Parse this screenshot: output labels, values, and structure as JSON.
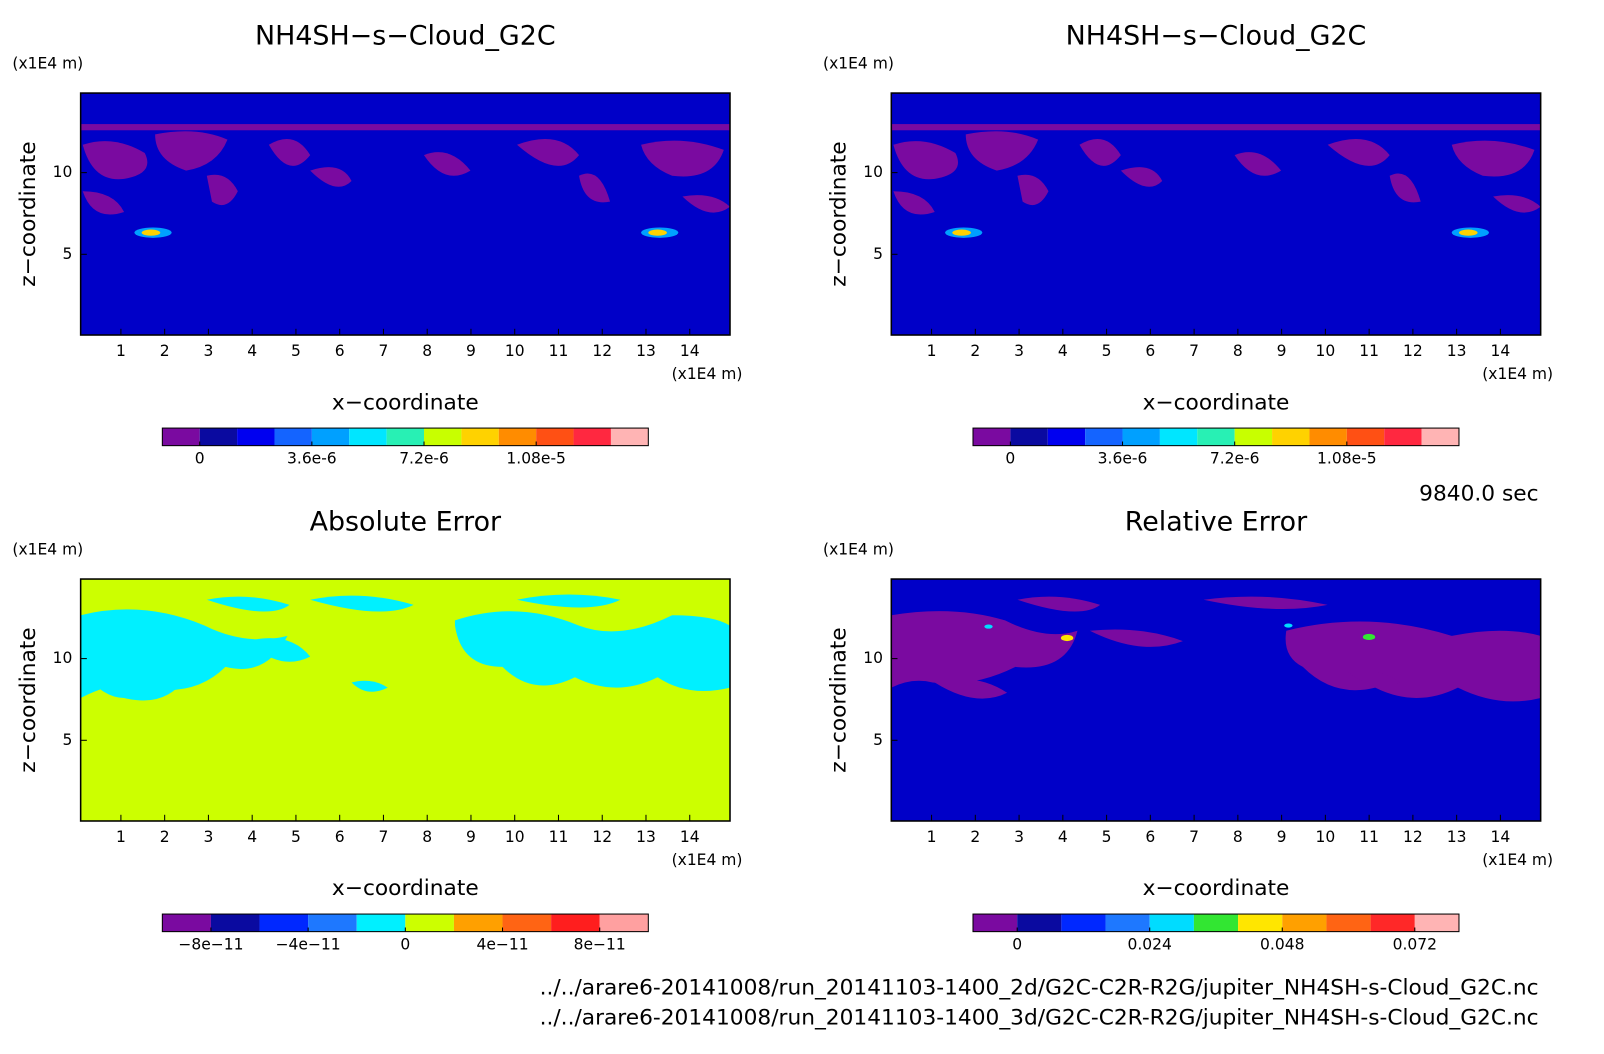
{
  "chart_data": [
    {
      "type": "contour",
      "title": "NH4SH−s−Cloud_G2C",
      "xlabel": "x−coordinate",
      "ylabel": "z−coordinate",
      "x_unit": "(x1E4 m)",
      "y_unit": "(x1E4 m)",
      "xlim": [
        0.08,
        14.92
      ],
      "ylim": [
        0.06,
        14.87
      ],
      "xticks": [
        1,
        2,
        3,
        4,
        5,
        6,
        7,
        8,
        9,
        10,
        11,
        12,
        13,
        14
      ],
      "yticks": [
        5,
        10
      ],
      "colorbar": {
        "colors": [
          "#7a0aa0",
          "#0a0aa0",
          "#0000f0",
          "#1464ff",
          "#00a0ff",
          "#00e6ff",
          "#28f0b4",
          "#c8ff00",
          "#ffd200",
          "#ff8c00",
          "#ff5014",
          "#ff2840",
          "#ffb4b4"
        ],
        "clim": [
          -1.2e-06,
          1.44e-05
        ],
        "ticks": [
          {
            "value": 0,
            "label": "0"
          },
          {
            "value": 3.6e-06,
            "label": "3.6e-6"
          },
          {
            "value": 7.2e-06,
            "label": "7.2e-6"
          },
          {
            "value": 1.08e-05,
            "label": "1.08e-5"
          }
        ]
      }
    },
    {
      "type": "contour",
      "title": "NH4SH−s−Cloud_G2C",
      "xlabel": "x−coordinate",
      "ylabel": "z−coordinate",
      "x_unit": "(x1E4 m)",
      "y_unit": "(x1E4 m)",
      "xlim": [
        0.08,
        14.92
      ],
      "ylim": [
        0.06,
        14.87
      ],
      "xticks": [
        1,
        2,
        3,
        4,
        5,
        6,
        7,
        8,
        9,
        10,
        11,
        12,
        13,
        14
      ],
      "yticks": [
        5,
        10
      ],
      "colorbar": {
        "colors": [
          "#7a0aa0",
          "#0a0aa0",
          "#0000f0",
          "#1464ff",
          "#00a0ff",
          "#00e6ff",
          "#28f0b4",
          "#c8ff00",
          "#ffd200",
          "#ff8c00",
          "#ff5014",
          "#ff2840",
          "#ffb4b4"
        ],
        "clim": [
          -1.2e-06,
          1.44e-05
        ],
        "ticks": [
          {
            "value": 0,
            "label": "0"
          },
          {
            "value": 3.6e-06,
            "label": "3.6e-6"
          },
          {
            "value": 7.2e-06,
            "label": "7.2e-6"
          },
          {
            "value": 1.08e-05,
            "label": "1.08e-5"
          }
        ]
      }
    },
    {
      "type": "contour",
      "title": "Absolute Error",
      "xlabel": "x−coordinate",
      "ylabel": "z−coordinate",
      "x_unit": "(x1E4 m)",
      "y_unit": "(x1E4 m)",
      "xlim": [
        0.08,
        14.92
      ],
      "ylim": [
        0.06,
        14.87
      ],
      "xticks": [
        1,
        2,
        3,
        4,
        5,
        6,
        7,
        8,
        9,
        10,
        11,
        12,
        13,
        14
      ],
      "yticks": [
        5,
        10
      ],
      "colorbar": {
        "colors": [
          "#7a0aa0",
          "#0a0aa0",
          "#0028ff",
          "#1e78ff",
          "#00f0ff",
          "#ccff00",
          "#ffa000",
          "#ff6414",
          "#ff1e1e",
          "#ffa0a0"
        ],
        "clim": [
          -1e-10,
          1e-10
        ],
        "ticks": [
          {
            "value": -8e-11,
            "label": "−8e−11"
          },
          {
            "value": -4e-11,
            "label": "−4e−11"
          },
          {
            "value": 0,
            "label": "0"
          },
          {
            "value": 4e-11,
            "label": "4e−11"
          },
          {
            "value": 8e-11,
            "label": "8e−11"
          }
        ]
      }
    },
    {
      "type": "contour",
      "title": "Relative Error",
      "xlabel": "x−coordinate",
      "ylabel": "z−coordinate",
      "x_unit": "(x1E4 m)",
      "y_unit": "(x1E4 m)",
      "xlim": [
        0.08,
        14.92
      ],
      "ylim": [
        0.06,
        14.87
      ],
      "xticks": [
        1,
        2,
        3,
        4,
        5,
        6,
        7,
        8,
        9,
        10,
        11,
        12,
        13,
        14
      ],
      "yticks": [
        5,
        10
      ],
      "colorbar": {
        "colors": [
          "#7a0aa0",
          "#0a0aa0",
          "#0028ff",
          "#1e78ff",
          "#00dcff",
          "#32e632",
          "#ffe600",
          "#ffa000",
          "#ff6414",
          "#ff2828",
          "#ffb4b4"
        ],
        "clim": [
          -0.008,
          0.08
        ],
        "ticks": [
          {
            "value": 0,
            "label": "0"
          },
          {
            "value": 0.024,
            "label": "0.024"
          },
          {
            "value": 0.048,
            "label": "0.048"
          },
          {
            "value": 0.072,
            "label": "0.072"
          }
        ]
      }
    }
  ],
  "time": "9840.0 sec",
  "files": [
    "../../arare6-20141008/run_20141103-1400_2d/G2C-C2R-R2G/jupiter_NH4SH-s-Cloud_G2C.nc",
    "../../arare6-20141008/run_20141103-1400_3d/G2C-C2R-R2G/jupiter_NH4SH-s-Cloud_G2C.nc"
  ]
}
